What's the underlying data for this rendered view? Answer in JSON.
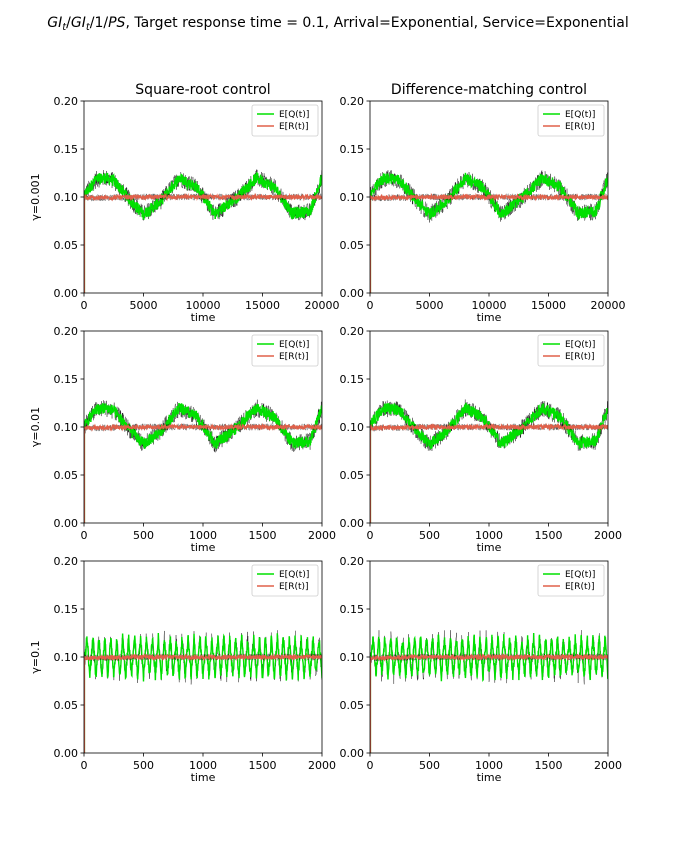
{
  "figure": {
    "suptitle": {
      "parts": [
        {
          "text": "GI",
          "italic": true
        },
        {
          "text": "t",
          "italic": true,
          "sub": true
        },
        {
          "text": "/",
          "italic": false
        },
        {
          "text": "GI",
          "italic": true
        },
        {
          "text": "t",
          "italic": true,
          "sub": true
        },
        {
          "text": "/1/",
          "italic": false
        },
        {
          "text": "PS",
          "italic": true
        },
        {
          "text": ", Target response time = 0.1, Arrival=Exponential, Service=Exponential",
          "italic": false
        }
      ]
    },
    "column_titles": [
      "Square-root control",
      "Difference-matching control"
    ],
    "row_labels": [
      "γ=0.001",
      "γ=0.01",
      "γ=0.1"
    ],
    "colors": {
      "queue": "#00e000",
      "response": "#e0604a",
      "noise": "#000000",
      "axis": "#000000"
    }
  },
  "chart_data": [
    {
      "type": "line",
      "panel": "row1-col1",
      "title": "Square-root control",
      "xlabel": "time",
      "ylabel": "γ=0.001",
      "xlim": [
        0,
        20000
      ],
      "ylim": [
        0,
        0.2
      ],
      "xticks": [
        0,
        5000,
        10000,
        15000,
        20000
      ],
      "yticks": [
        0.0,
        0.05,
        0.1,
        0.15,
        0.2
      ],
      "ytick_labels": [
        "0.00",
        "0.05",
        "0.10",
        "0.15",
        "0.20"
      ],
      "legend": "top-right",
      "grid": false,
      "series": [
        {
          "name": "E[Q(t)]",
          "color": "#00e000",
          "x": [
            0,
            200,
            1000,
            1750,
            2500,
            4000,
            5000,
            6400,
            8000,
            9500,
            11000,
            12900,
            14500,
            16000,
            17500,
            19000,
            20000
          ],
          "y": [
            0.1,
            0.105,
            0.118,
            0.12,
            0.117,
            0.095,
            0.082,
            0.095,
            0.12,
            0.11,
            0.082,
            0.1,
            0.12,
            0.11,
            0.083,
            0.085,
            0.12
          ]
        },
        {
          "name": "E[R(t)]",
          "color": "#e0604a",
          "x": [
            0,
            200,
            5000,
            10000,
            15000,
            20000
          ],
          "y": [
            0.1,
            0.099,
            0.1,
            0.1,
            0.1,
            0.1
          ]
        }
      ]
    },
    {
      "type": "line",
      "panel": "row1-col2",
      "title": "Difference-matching control",
      "xlabel": "time",
      "xlim": [
        0,
        20000
      ],
      "ylim": [
        0,
        0.2
      ],
      "xticks": [
        0,
        5000,
        10000,
        15000,
        20000
      ],
      "yticks": [
        0.0,
        0.05,
        0.1,
        0.15,
        0.2
      ],
      "ytick_labels": [
        "0.00",
        "0.05",
        "0.10",
        "0.15",
        "0.20"
      ],
      "legend": "top-right",
      "grid": false,
      "series": [
        {
          "name": "E[Q(t)]",
          "color": "#00e000",
          "x": [
            0,
            200,
            1000,
            1750,
            2500,
            4000,
            5000,
            6400,
            8000,
            9500,
            11000,
            12900,
            14500,
            16000,
            17500,
            19000,
            20000
          ],
          "y": [
            0.1,
            0.105,
            0.118,
            0.12,
            0.117,
            0.095,
            0.082,
            0.095,
            0.12,
            0.11,
            0.082,
            0.1,
            0.12,
            0.11,
            0.083,
            0.085,
            0.12
          ]
        },
        {
          "name": "E[R(t)]",
          "color": "#e0604a",
          "x": [
            0,
            200,
            5000,
            10000,
            15000,
            20000
          ],
          "y": [
            0.1,
            0.099,
            0.1,
            0.1,
            0.1,
            0.1
          ]
        }
      ]
    },
    {
      "type": "line",
      "panel": "row2-col1",
      "xlabel": "time",
      "ylabel": "γ=0.01",
      "xlim": [
        0,
        2000
      ],
      "ylim": [
        0,
        0.2
      ],
      "xticks": [
        0,
        500,
        1000,
        1500,
        2000
      ],
      "yticks": [
        0.0,
        0.05,
        0.1,
        0.15,
        0.2
      ],
      "ytick_labels": [
        "0.00",
        "0.05",
        "0.10",
        "0.15",
        "0.20"
      ],
      "legend": "top-right",
      "grid": false,
      "series": [
        {
          "name": "E[Q(t)]",
          "color": "#00e000",
          "x": [
            0,
            20,
            100,
            175,
            250,
            400,
            500,
            640,
            800,
            950,
            1100,
            1290,
            1450,
            1600,
            1750,
            1900,
            2000
          ],
          "y": [
            0.1,
            0.105,
            0.118,
            0.12,
            0.117,
            0.095,
            0.082,
            0.095,
            0.12,
            0.11,
            0.082,
            0.1,
            0.12,
            0.11,
            0.083,
            0.085,
            0.12
          ]
        },
        {
          "name": "E[R(t)]",
          "color": "#e0604a",
          "x": [
            0,
            20,
            500,
            1000,
            1500,
            2000
          ],
          "y": [
            0.1,
            0.099,
            0.1,
            0.1,
            0.1,
            0.1
          ]
        }
      ]
    },
    {
      "type": "line",
      "panel": "row2-col2",
      "xlabel": "time",
      "xlim": [
        0,
        2000
      ],
      "ylim": [
        0,
        0.2
      ],
      "xticks": [
        0,
        500,
        1000,
        1500,
        2000
      ],
      "yticks": [
        0.0,
        0.05,
        0.1,
        0.15,
        0.2
      ],
      "ytick_labels": [
        "0.00",
        "0.05",
        "0.10",
        "0.15",
        "0.20"
      ],
      "legend": "top-right",
      "grid": false,
      "series": [
        {
          "name": "E[Q(t)]",
          "color": "#00e000",
          "x": [
            0,
            20,
            100,
            175,
            250,
            400,
            500,
            640,
            800,
            950,
            1100,
            1290,
            1450,
            1600,
            1750,
            1900,
            2000
          ],
          "y": [
            0.1,
            0.105,
            0.118,
            0.12,
            0.117,
            0.095,
            0.082,
            0.095,
            0.12,
            0.11,
            0.082,
            0.1,
            0.12,
            0.11,
            0.083,
            0.085,
            0.12
          ]
        },
        {
          "name": "E[R(t)]",
          "color": "#e0604a",
          "x": [
            0,
            20,
            500,
            1000,
            1500,
            2000
          ],
          "y": [
            0.1,
            0.099,
            0.1,
            0.1,
            0.1,
            0.1
          ]
        }
      ]
    },
    {
      "type": "line",
      "panel": "row3-col1",
      "xlabel": "time",
      "ylabel": "γ=0.1",
      "xlim": [
        0,
        2000
      ],
      "ylim": [
        0,
        0.2
      ],
      "xticks": [
        0,
        500,
        1000,
        1500,
        2000
      ],
      "yticks": [
        0.0,
        0.05,
        0.1,
        0.15,
        0.2
      ],
      "ytick_labels": [
        "0.00",
        "0.05",
        "0.10",
        "0.15",
        "0.20"
      ],
      "legend": "top-right",
      "grid": false,
      "series": [
        {
          "name": "E[Q(t)]",
          "color": "#00e000",
          "x": [
            0,
            10,
            25,
            50,
            75,
            100,
            125,
            150,
            175,
            200,
            225,
            250,
            275,
            300,
            325,
            350,
            375,
            400,
            425,
            450,
            475,
            500,
            525,
            550,
            575,
            600,
            625,
            650,
            675,
            700,
            725,
            750,
            775,
            800,
            825,
            850,
            875,
            900,
            925,
            950,
            975,
            1000,
            1025,
            1050,
            1075,
            1100,
            1125,
            1150,
            1175,
            1200,
            1225,
            1250,
            1275,
            1300,
            1325,
            1350,
            1375,
            1400,
            1425,
            1450,
            1475,
            1500,
            1525,
            1550,
            1575,
            1600,
            1625,
            1650,
            1675,
            1700,
            1725,
            1750,
            1775,
            1800,
            1825,
            1850,
            1875,
            1900,
            1925,
            1950,
            1975,
            2000
          ],
          "y": [
            0.1,
            0.1,
            0.12,
            0.08,
            0.12,
            0.08,
            0.12,
            0.08,
            0.12,
            0.08,
            0.12,
            0.08,
            0.12,
            0.08,
            0.12,
            0.08,
            0.12,
            0.08,
            0.12,
            0.08,
            0.12,
            0.08,
            0.12,
            0.08,
            0.12,
            0.08,
            0.12,
            0.08,
            0.12,
            0.08,
            0.12,
            0.08,
            0.12,
            0.08,
            0.12,
            0.08,
            0.12,
            0.08,
            0.12,
            0.08,
            0.12,
            0.08,
            0.12,
            0.08,
            0.12,
            0.08,
            0.12,
            0.08,
            0.12,
            0.08,
            0.12,
            0.08,
            0.12,
            0.08,
            0.12,
            0.08,
            0.12,
            0.08,
            0.12,
            0.08,
            0.12,
            0.08,
            0.12,
            0.08,
            0.12,
            0.08,
            0.12,
            0.08,
            0.12,
            0.08,
            0.12,
            0.08,
            0.12,
            0.08,
            0.12,
            0.08,
            0.12,
            0.08,
            0.12,
            0.08,
            0.12,
            0.08
          ]
        },
        {
          "name": "E[R(t)]",
          "color": "#e0604a",
          "x": [
            0,
            10,
            500,
            1000,
            1500,
            2000
          ],
          "y": [
            0.1,
            0.099,
            0.1,
            0.1,
            0.1,
            0.1
          ]
        }
      ]
    },
    {
      "type": "line",
      "panel": "row3-col2",
      "xlabel": "time",
      "xlim": [
        0,
        2000
      ],
      "ylim": [
        0,
        0.2
      ],
      "xticks": [
        0,
        500,
        1000,
        1500,
        2000
      ],
      "yticks": [
        0.0,
        0.05,
        0.1,
        0.15,
        0.2
      ],
      "ytick_labels": [
        "0.00",
        "0.05",
        "0.10",
        "0.15",
        "0.20"
      ],
      "legend": "top-right",
      "grid": false,
      "series": [
        {
          "name": "E[Q(t)]",
          "color": "#00e000",
          "x": [
            0,
            10,
            25,
            50,
            75,
            100,
            125,
            150,
            175,
            200,
            225,
            250,
            275,
            300,
            325,
            350,
            375,
            400,
            425,
            450,
            475,
            500,
            525,
            550,
            575,
            600,
            625,
            650,
            675,
            700,
            725,
            750,
            775,
            800,
            825,
            850,
            875,
            900,
            925,
            950,
            975,
            1000,
            1025,
            1050,
            1075,
            1100,
            1125,
            1150,
            1175,
            1200,
            1225,
            1250,
            1275,
            1300,
            1325,
            1350,
            1375,
            1400,
            1425,
            1450,
            1475,
            1500,
            1525,
            1550,
            1575,
            1600,
            1625,
            1650,
            1675,
            1700,
            1725,
            1750,
            1775,
            1800,
            1825,
            1850,
            1875,
            1900,
            1925,
            1950,
            1975,
            2000
          ],
          "y": [
            0.1,
            0.1,
            0.12,
            0.08,
            0.12,
            0.08,
            0.12,
            0.08,
            0.12,
            0.08,
            0.12,
            0.08,
            0.12,
            0.08,
            0.12,
            0.08,
            0.12,
            0.08,
            0.12,
            0.08,
            0.12,
            0.08,
            0.12,
            0.08,
            0.12,
            0.08,
            0.12,
            0.08,
            0.12,
            0.08,
            0.12,
            0.08,
            0.12,
            0.08,
            0.12,
            0.08,
            0.12,
            0.08,
            0.12,
            0.08,
            0.12,
            0.08,
            0.12,
            0.08,
            0.12,
            0.08,
            0.12,
            0.08,
            0.12,
            0.08,
            0.12,
            0.08,
            0.12,
            0.08,
            0.12,
            0.08,
            0.12,
            0.08,
            0.12,
            0.08,
            0.12,
            0.08,
            0.12,
            0.08,
            0.12,
            0.08,
            0.12,
            0.08,
            0.12,
            0.08,
            0.12,
            0.08,
            0.12,
            0.08,
            0.12,
            0.08,
            0.12,
            0.08,
            0.12,
            0.08,
            0.12,
            0.08
          ]
        },
        {
          "name": "E[R(t)]",
          "color": "#e0604a",
          "x": [
            0,
            10,
            500,
            1000,
            1500,
            2000
          ],
          "y": [
            0.1,
            0.099,
            0.1,
            0.1,
            0.1,
            0.1
          ]
        }
      ]
    }
  ]
}
